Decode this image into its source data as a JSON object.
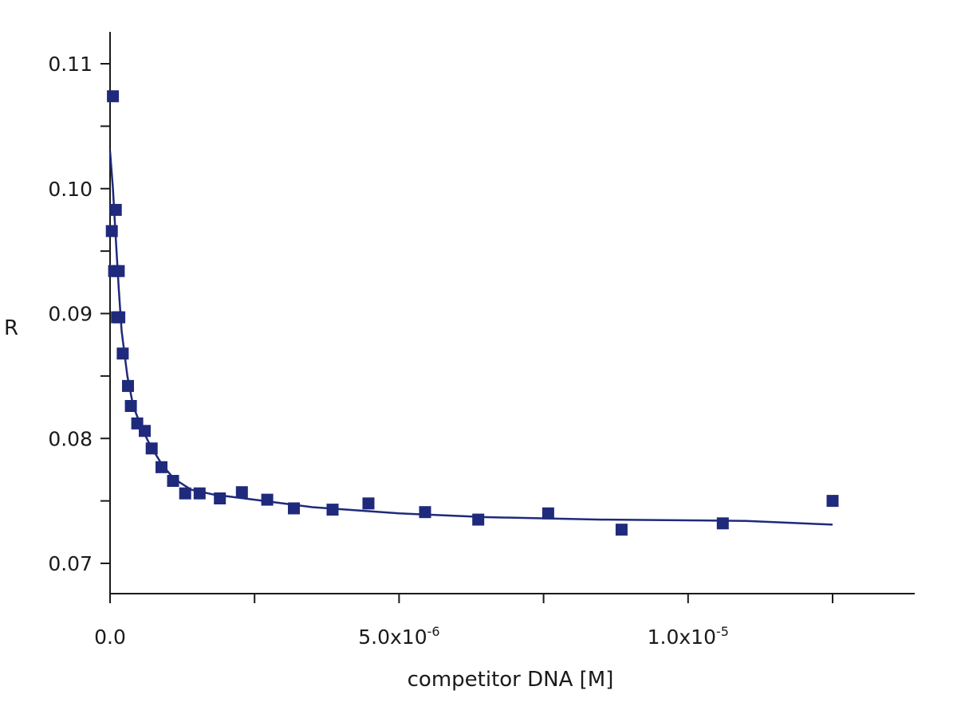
{
  "chart_data": {
    "type": "scatter",
    "xlabel": "competitor DNA [M]",
    "ylabel": "R",
    "xlim": [
      0,
      1.39e-05
    ],
    "ylim": [
      0.0675,
      0.1125
    ],
    "x_major_ticks": [
      0,
      2.5e-06,
      5e-06,
      7.5e-06,
      1e-05,
      1.25e-05
    ],
    "x_tick_labels": [
      {
        "value": 0,
        "mantissa": "0.0",
        "exponent": ""
      },
      {
        "value": 5e-06,
        "mantissa": "5.0x10",
        "exponent": "-6"
      },
      {
        "value": 1e-05,
        "mantissa": "1.0x10",
        "exponent": "-5"
      }
    ],
    "y_major_ticks": [
      0.07,
      0.075,
      0.08,
      0.085,
      0.09,
      0.095,
      0.1,
      0.105,
      0.11
    ],
    "y_tick_labels": [
      {
        "value": 0.07,
        "label": "0.07"
      },
      {
        "value": 0.08,
        "label": "0.08"
      },
      {
        "value": 0.09,
        "label": "0.09"
      },
      {
        "value": 0.1,
        "label": "0.10"
      },
      {
        "value": 0.11,
        "label": "0.11"
      }
    ],
    "colors": {
      "series": "#1f2a7c",
      "axis": "#1a1a1a"
    },
    "series": [
      {
        "kind": "points",
        "marker": "square",
        "points": [
          {
            "x": 5e-08,
            "y": 0.1074
          },
          {
            "x": 3e-08,
            "y": 0.0966
          },
          {
            "x": 1e-07,
            "y": 0.0983
          },
          {
            "x": 7e-08,
            "y": 0.0934
          },
          {
            "x": 1.5e-07,
            "y": 0.0934
          },
          {
            "x": 1.2e-07,
            "y": 0.0897
          },
          {
            "x": 1.6e-07,
            "y": 0.0897
          },
          {
            "x": 2.2e-07,
            "y": 0.0868
          },
          {
            "x": 3.1e-07,
            "y": 0.0842
          },
          {
            "x": 3.6e-07,
            "y": 0.0826
          },
          {
            "x": 4.7e-07,
            "y": 0.0812
          },
          {
            "x": 6e-07,
            "y": 0.0806
          },
          {
            "x": 7.2e-07,
            "y": 0.0792
          },
          {
            "x": 8.9e-07,
            "y": 0.0777
          },
          {
            "x": 1.09e-06,
            "y": 0.0766
          },
          {
            "x": 1.3e-06,
            "y": 0.0756
          },
          {
            "x": 1.55e-06,
            "y": 0.0756
          },
          {
            "x": 1.9e-06,
            "y": 0.0752
          },
          {
            "x": 2.28e-06,
            "y": 0.0757
          },
          {
            "x": 2.72e-06,
            "y": 0.0751
          },
          {
            "x": 3.18e-06,
            "y": 0.0744
          },
          {
            "x": 3.85e-06,
            "y": 0.0743
          },
          {
            "x": 4.47e-06,
            "y": 0.0748
          },
          {
            "x": 5.45e-06,
            "y": 0.0741
          },
          {
            "x": 6.37e-06,
            "y": 0.0735
          },
          {
            "x": 7.58e-06,
            "y": 0.074
          },
          {
            "x": 8.85e-06,
            "y": 0.0727
          },
          {
            "x": 1.06e-05,
            "y": 0.0732
          },
          {
            "x": 1.25e-05,
            "y": 0.075
          }
        ]
      },
      {
        "kind": "fit-line",
        "points": [
          {
            "x": 0.0,
            "y": 0.103
          },
          {
            "x": 5e-08,
            "y": 0.1
          },
          {
            "x": 1e-07,
            "y": 0.096
          },
          {
            "x": 1.5e-07,
            "y": 0.092
          },
          {
            "x": 2e-07,
            "y": 0.0886
          },
          {
            "x": 3e-07,
            "y": 0.085
          },
          {
            "x": 4e-07,
            "y": 0.0826
          },
          {
            "x": 5.5e-07,
            "y": 0.0808
          },
          {
            "x": 7e-07,
            "y": 0.0794
          },
          {
            "x": 9e-07,
            "y": 0.0779
          },
          {
            "x": 1.1e-06,
            "y": 0.0768
          },
          {
            "x": 1.4e-06,
            "y": 0.0759
          },
          {
            "x": 1.8e-06,
            "y": 0.0755
          },
          {
            "x": 2.5e-06,
            "y": 0.0751
          },
          {
            "x": 3.5e-06,
            "y": 0.0745
          },
          {
            "x": 5e-06,
            "y": 0.074
          },
          {
            "x": 6.5e-06,
            "y": 0.0737
          },
          {
            "x": 8.5e-06,
            "y": 0.0735
          },
          {
            "x": 1.1e-05,
            "y": 0.0734
          },
          {
            "x": 1.25e-05,
            "y": 0.0731
          }
        ]
      }
    ]
  }
}
